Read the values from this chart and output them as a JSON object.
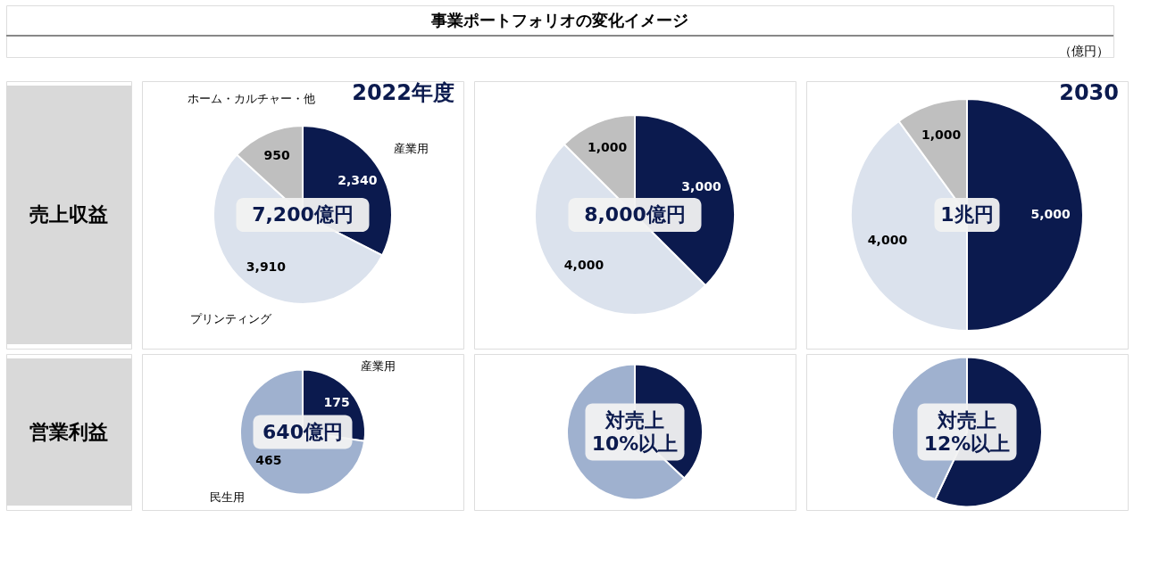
{
  "chart_data": [
    {
      "type": "other",
      "title": "事業ポートフォリオの変化イメージ",
      "annotations": [
        "売上収益",
        "営業利益",
        "（億円）"
      ]
    },
    {
      "type": "pie",
      "title": "2022年度",
      "categories": [
        "産業用",
        "プリンティング",
        "ホーム・カルチャー・他"
      ],
      "values": [
        2340,
        3910,
        950
      ],
      "value_labels": [
        "2,340",
        "3,910",
        "950"
      ],
      "colors": [
        "#0b1a4e",
        "#dbe2ed",
        "#bfbfbf"
      ],
      "annotations": [
        "7,200億円"
      ]
    },
    {
      "type": "pie",
      "categories": [
        null,
        null,
        null
      ],
      "values": [
        3000,
        4000,
        1000
      ],
      "value_labels": [
        "3,000",
        "4,000",
        "1,000"
      ],
      "colors": [
        "#0b1a4e",
        "#dbe2ed",
        "#bfbfbf"
      ],
      "annotations": [
        "8,000億円"
      ]
    },
    {
      "type": "pie",
      "title": "2030",
      "categories": [
        null,
        null,
        null
      ],
      "values": [
        5000,
        4000,
        1000
      ],
      "value_labels": [
        "5,000",
        "4,000",
        "1,000"
      ],
      "colors": [
        "#0b1a4e",
        "#dbe2ed",
        "#bfbfbf"
      ],
      "annotations": [
        "1兆円"
      ]
    },
    {
      "type": "pie",
      "categories": [
        "産業用",
        "民生用"
      ],
      "values": [
        175,
        465
      ],
      "value_labels": [
        "175",
        "465"
      ],
      "colors": [
        "#0b1a4e",
        "#9fb1cf"
      ],
      "annotations": [
        "640億円"
      ]
    },
    {
      "type": "pie",
      "categories": [
        null,
        null
      ],
      "values": [
        37,
        63
      ],
      "colors": [
        "#0b1a4e",
        "#9fb1cf"
      ],
      "annotations": [
        "対売上\n10%以上"
      ]
    },
    {
      "type": "pie",
      "categories": [
        null,
        null
      ],
      "values": [
        57,
        43
      ],
      "colors": [
        "#0b1a4e",
        "#9fb1cf"
      ],
      "annotations": [
        "対売上\n12%以上"
      ]
    }
  ]
}
